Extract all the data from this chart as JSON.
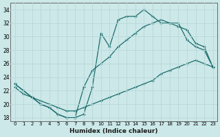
{
  "xlabel": "Humidex (Indice chaleur)",
  "bg_color": "#cce8e8",
  "grid_color": "#aacccc",
  "line_color": "#1a6b6b",
  "xlim": [
    -0.5,
    23.5
  ],
  "ylim": [
    17.5,
    35.0
  ],
  "xticks": [
    0,
    1,
    2,
    3,
    4,
    5,
    6,
    7,
    8,
    9,
    10,
    11,
    12,
    13,
    14,
    15,
    16,
    17,
    18,
    19,
    20,
    21,
    22,
    23
  ],
  "yticks": [
    18,
    20,
    22,
    24,
    26,
    28,
    30,
    32,
    34
  ],
  "curve1_x": [
    0,
    1,
    2,
    3,
    4,
    5,
    6,
    7,
    8,
    9,
    10,
    11,
    12,
    13,
    14,
    15,
    16,
    17,
    18,
    19,
    20,
    21,
    22,
    23
  ],
  "curve1_y": [
    23.0,
    22.0,
    21.0,
    20.0,
    19.5,
    18.5,
    18.0,
    18.0,
    18.5,
    22.5,
    30.5,
    28.5,
    32.5,
    33.0,
    33.0,
    34.0,
    33.0,
    32.0,
    32.0,
    32.0,
    29.5,
    28.5,
    28.0,
    25.5
  ],
  "curve2_x": [
    0,
    1,
    2,
    3,
    4,
    5,
    6,
    7,
    8,
    9,
    10,
    11,
    12,
    13,
    14,
    15,
    16,
    17,
    18,
    19,
    20,
    21,
    22,
    23
  ],
  "curve2_y": [
    23.0,
    22.0,
    21.0,
    20.0,
    19.5,
    18.5,
    18.0,
    18.0,
    22.5,
    25.0,
    26.0,
    27.0,
    28.5,
    29.5,
    30.5,
    31.5,
    32.0,
    32.5,
    32.0,
    31.5,
    31.0,
    29.0,
    28.5,
    25.5
  ],
  "curve3_x": [
    0,
    1,
    2,
    3,
    4,
    5,
    6,
    7,
    8,
    9,
    10,
    11,
    12,
    13,
    14,
    15,
    16,
    17,
    18,
    19,
    20,
    21,
    22,
    23
  ],
  "curve3_y": [
    22.5,
    21.5,
    21.0,
    20.5,
    20.0,
    19.5,
    19.0,
    19.0,
    19.5,
    20.0,
    20.5,
    21.0,
    21.5,
    22.0,
    22.5,
    23.0,
    23.5,
    24.5,
    25.0,
    25.5,
    26.0,
    26.5,
    26.0,
    25.5
  ]
}
